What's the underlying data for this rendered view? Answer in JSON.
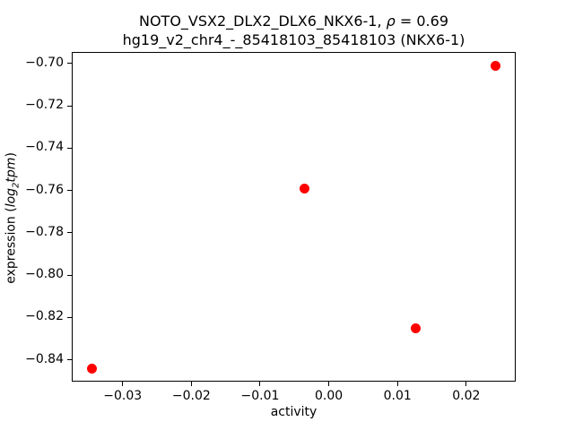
{
  "title": {
    "line1_main": "NOTO_VSX2_DLX2_DLX6_NKX6-1, ",
    "rho_symbol": "ρ",
    "line1_eq": " = 0.69",
    "line2": "hg19_v2_chr4_-_85418103_85418103 (NKX6-1)"
  },
  "axes": {
    "xlabel": "activity",
    "ylabel_pre": "expression (",
    "ylabel_log": "log",
    "ylabel_sub": "2",
    "ylabel_tpm": "tpm",
    "ylabel_post": ")"
  },
  "chart_data": {
    "type": "scatter",
    "title": "NOTO_VSX2_DLX2_DLX6_NKX6-1, ρ = 0.69",
    "subtitle": "hg19_v2_chr4_-_85418103_85418103 (NKX6-1)",
    "xlabel": "activity",
    "ylabel": "expression (log2tpm)",
    "points": [
      {
        "x": -0.0344,
        "y": -0.844
      },
      {
        "x": -0.0035,
        "y": -0.759
      },
      {
        "x": 0.0126,
        "y": -0.825
      },
      {
        "x": 0.0243,
        "y": -0.701
      }
    ],
    "marker_color": "#ff0000",
    "marker_diameter_px": 11,
    "xlim": [
      -0.0374,
      0.0272
    ],
    "ylim": [
      -0.8503,
      -0.6946
    ],
    "xticks": [
      -0.03,
      -0.02,
      -0.01,
      0.0,
      0.01,
      0.02
    ],
    "yticks": [
      -0.7,
      -0.72,
      -0.74,
      -0.76,
      -0.78,
      -0.8,
      -0.82,
      -0.84
    ],
    "grid": false,
    "legend": null
  }
}
